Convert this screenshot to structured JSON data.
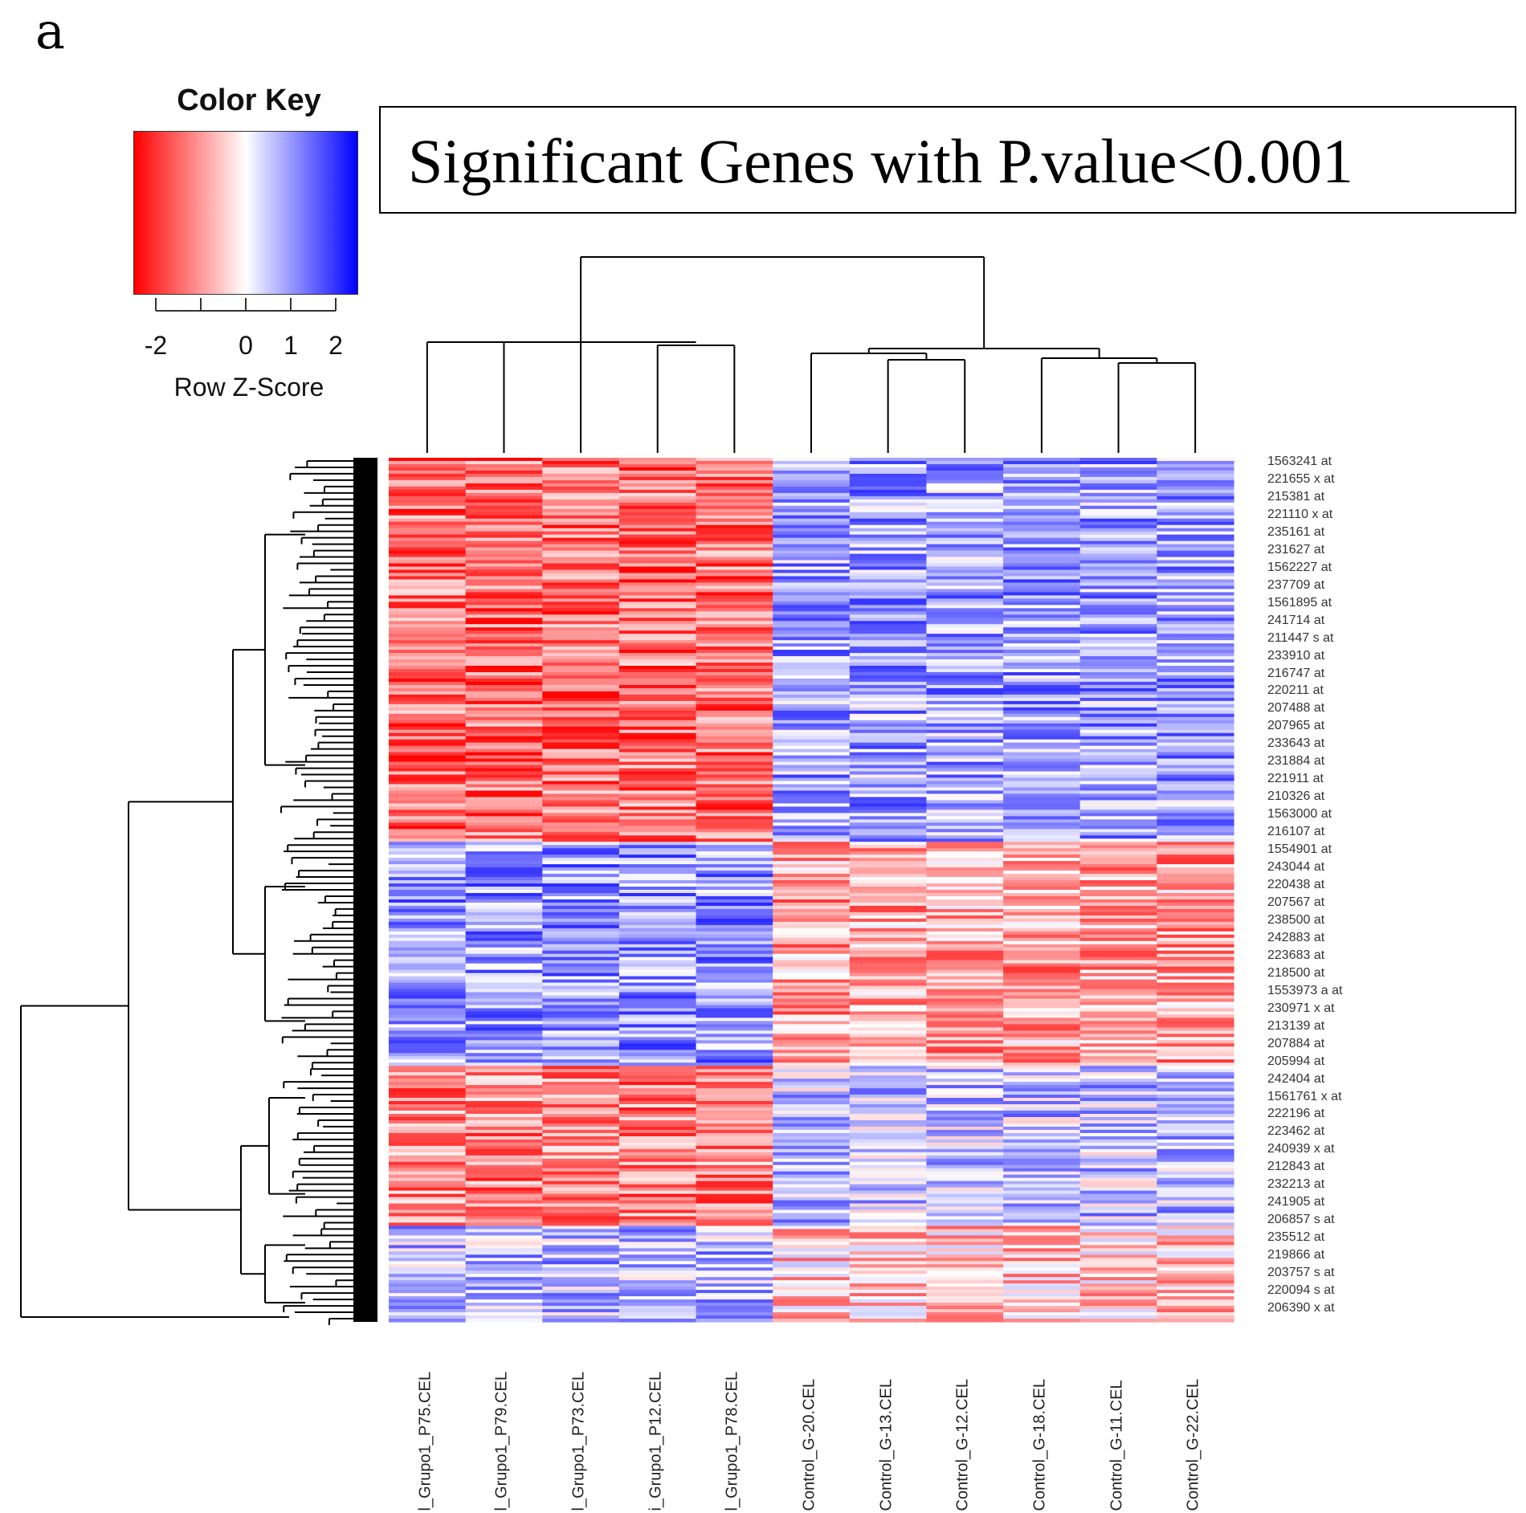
{
  "panel_letter": "a",
  "chart_data": {
    "type": "heatmap",
    "title": "Significant Genes with P.value<0.001",
    "color_key": {
      "title": "Color Key",
      "axis_label": "Row Z-Score",
      "tick_labels": [
        "-2",
        "0",
        "1",
        "2"
      ],
      "tick_values": [
        -2,
        0,
        1,
        2
      ],
      "range": [
        -2.5,
        2.5
      ],
      "low_color": "#ff0000",
      "mid_color": "#ffffff",
      "high_color": "#0000ff"
    },
    "columns": [
      "l_Grupo1_P75.CEL",
      "l_Grupo1_P79.CEL",
      "l_Grupo1_P73.CEL",
      "i_Grupo1_P12.CEL",
      "l_Grupo1_P78.CEL",
      "Control_G-20.CEL",
      "Control_G-13.CEL",
      "Control_G-12.CEL",
      "Control_G-18.CEL",
      "Control_G-11.CEL",
      "Control_G-22.CEL"
    ],
    "row_labels": [
      "1563241_at",
      "221655_x_at",
      "215381_at",
      "221110_x_at",
      "235161_at",
      "231627_at",
      "1562227_at",
      "237709_at",
      "1561895_at",
      "241714_at",
      "211447_s_at",
      "233910_at",
      "216747_at",
      "220211_at",
      "207488_at",
      "207965_at",
      "233643_at",
      "231884_at",
      "221911_at",
      "210326_at",
      "1563000_at",
      "216107_at",
      "1554901_at",
      "243044_at",
      "220438_at",
      "207567_at",
      "238500_at",
      "242883_at",
      "223683_at",
      "218500_at",
      "1553973_a_at",
      "230971_x_at",
      "213139_at",
      "207884_at",
      "205994_at",
      "242404_at",
      "1561761_x_at",
      "222196_at",
      "223462_at",
      "240939_x_at",
      "212843_at",
      "232213_at",
      "241905_at",
      "206857_s_at",
      "235512_at",
      "219866_at",
      "203757_s_at",
      "220094_s_at",
      "206390_x_at"
    ],
    "row_blocks": [
      {
        "rows": 120,
        "group1_mean": -1.4,
        "control_mean": 0.9
      },
      {
        "rows": 70,
        "group1_mean": 1.0,
        "control_mean": -0.9
      },
      {
        "rows": 50,
        "group1_mean": -1.2,
        "control_mean": 0.6
      },
      {
        "rows": 30,
        "group1_mean": 0.7,
        "control_mean": -0.5
      }
    ],
    "column_dendrogram": {
      "left_cluster": [
        "l_Grupo1_P75.CEL",
        "l_Grupo1_P79.CEL",
        "l_Grupo1_P73.CEL",
        "i_Grupo1_P12.CEL",
        "l_Grupo1_P78.CEL"
      ],
      "right_cluster": [
        "Control_G-20.CEL",
        "Control_G-13.CEL",
        "Control_G-12.CEL",
        "Control_G-18.CEL",
        "Control_G-11.CEL",
        "Control_G-22.CEL"
      ]
    },
    "xlabel": "",
    "ylabel": ""
  }
}
